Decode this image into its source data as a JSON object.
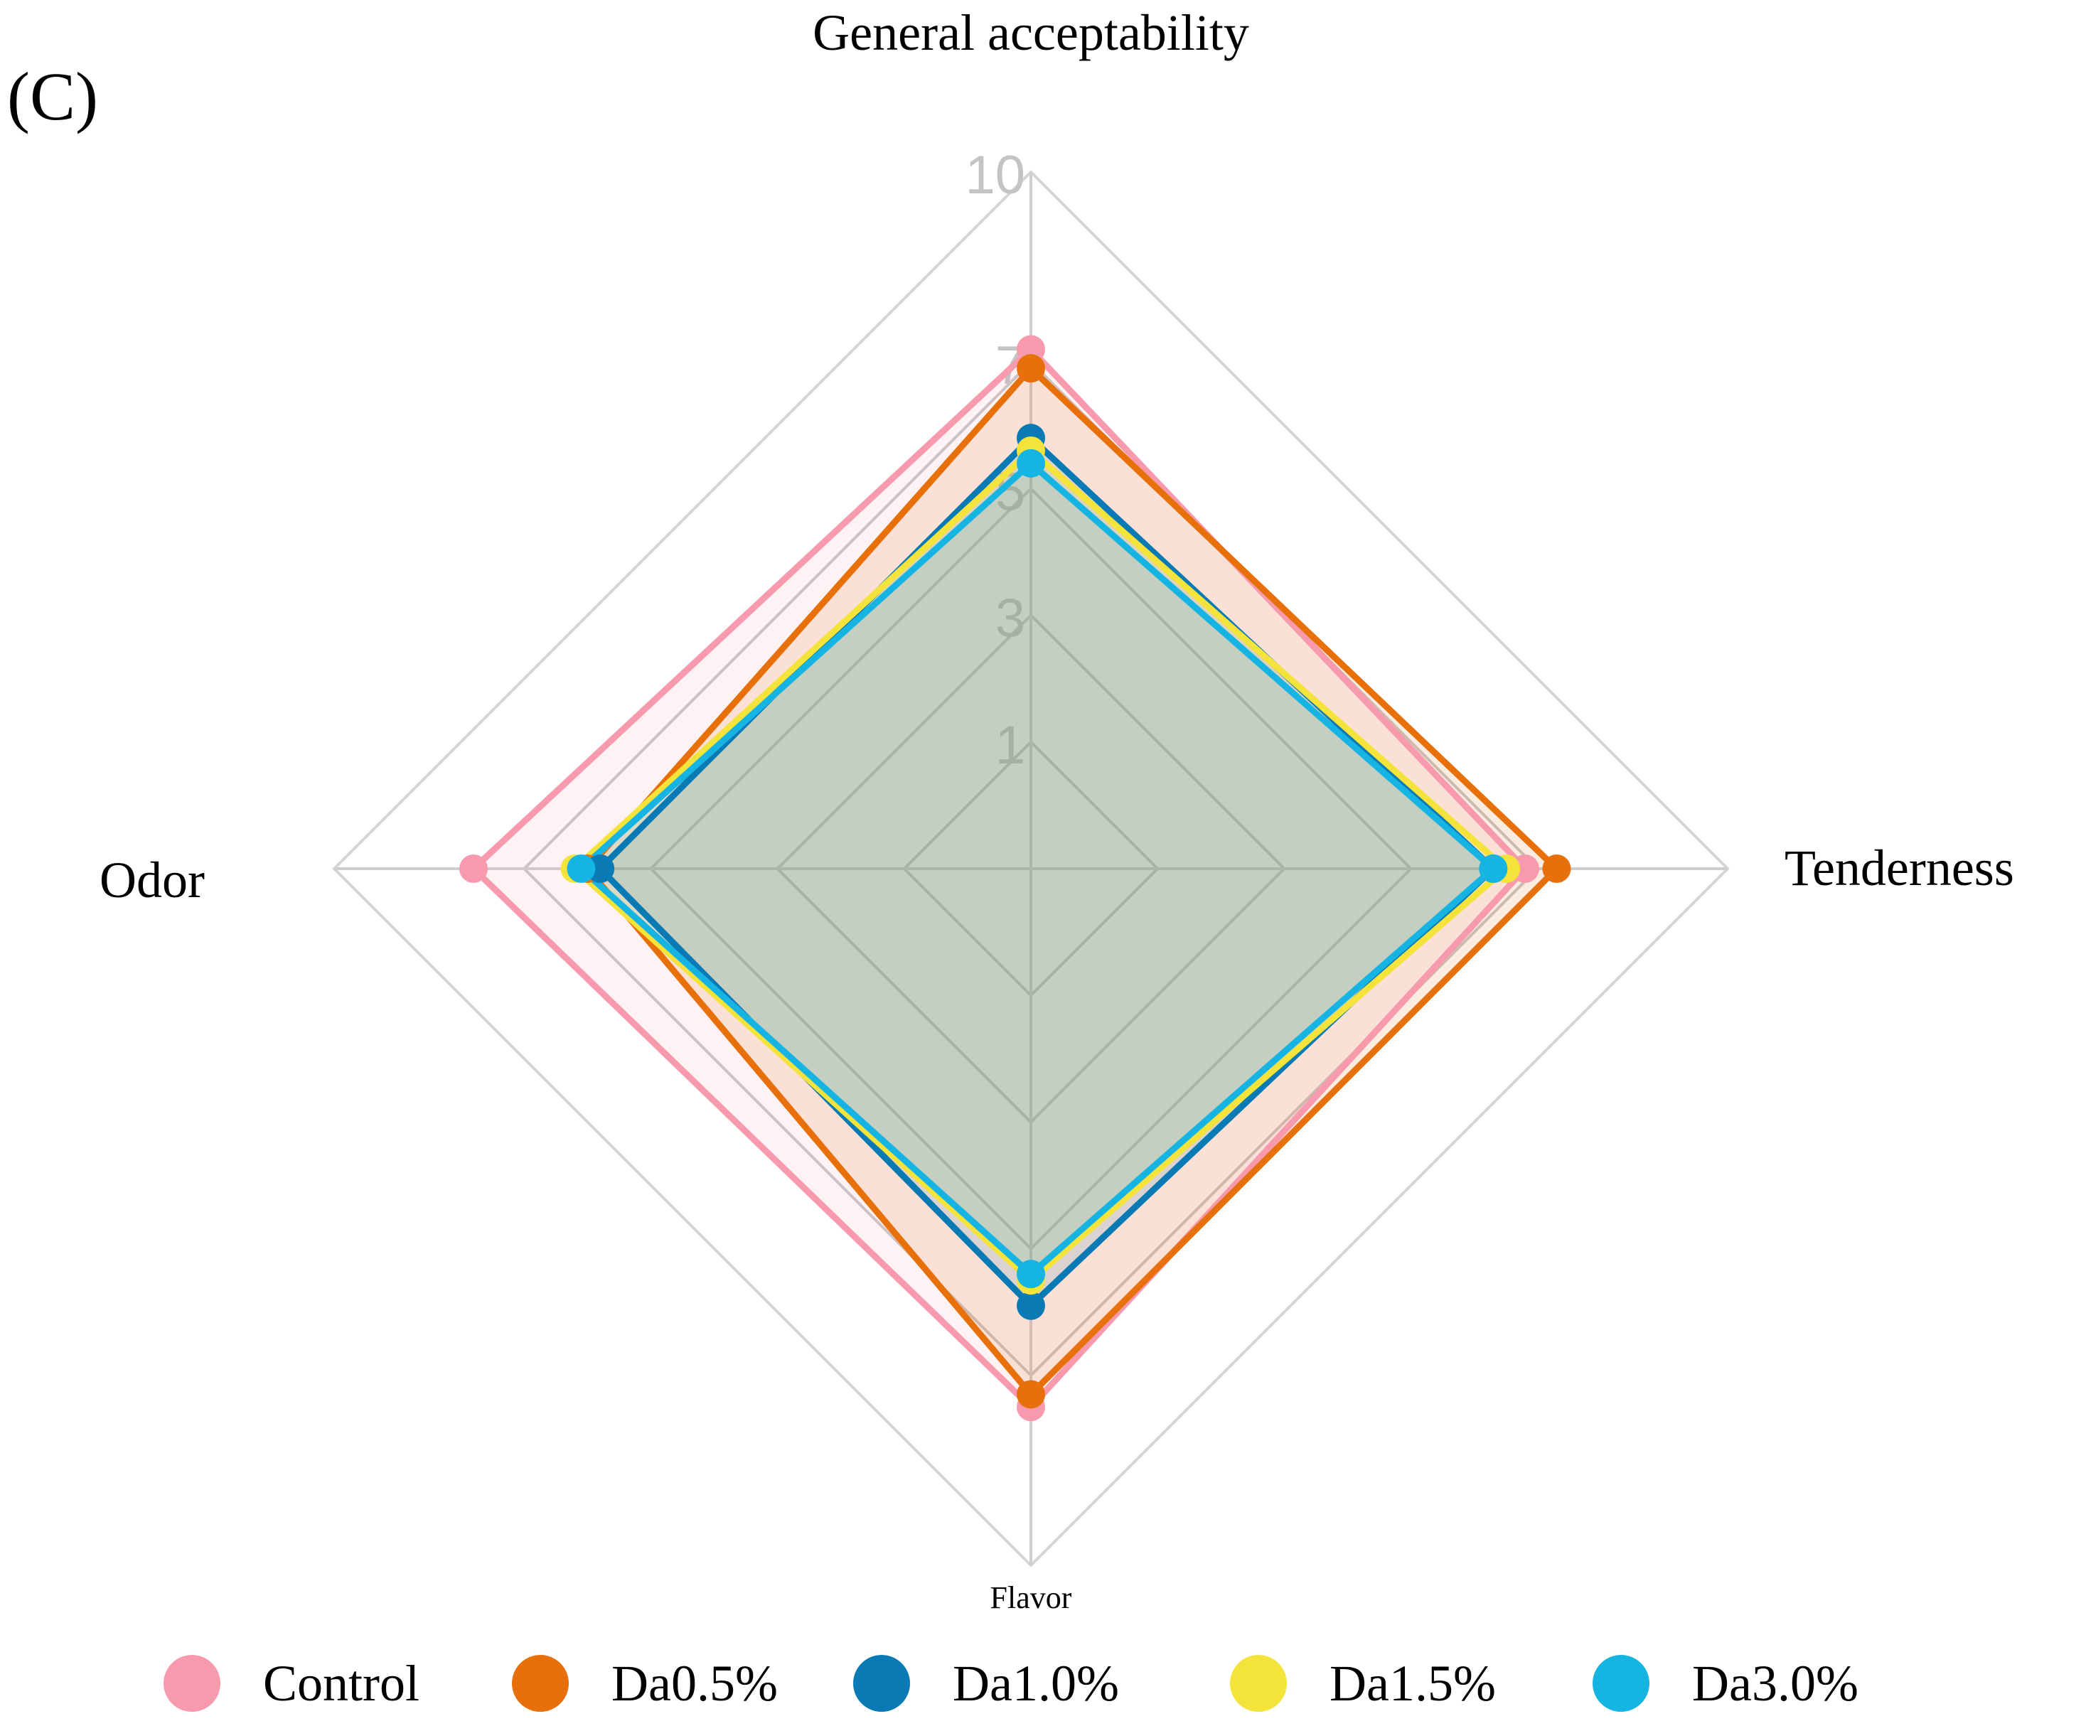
{
  "panel_label": "(C)",
  "chart_data": {
    "type": "radar",
    "title": "",
    "axes": [
      "General acceptability",
      "Tenderness",
      "Flavor",
      "Odor"
    ],
    "rlim": [
      -1,
      10
    ],
    "ticks": [
      "1",
      "3",
      "5",
      "7",
      "10"
    ],
    "series": [
      {
        "name": "Control",
        "color": "#f79aae",
        "values": [
          7.2,
          6.8,
          7.5,
          7.8
        ]
      },
      {
        "name": "Da0.5%",
        "color": "#e8700a",
        "values": [
          6.9,
          7.3,
          7.3,
          6.0
        ]
      },
      {
        "name": "Da1.0%",
        "color": "#0a7ab5",
        "values": [
          5.8,
          6.3,
          5.9,
          5.8
        ]
      },
      {
        "name": "Da1.5%",
        "color": "#f4e33a",
        "values": [
          5.6,
          6.5,
          5.5,
          6.2
        ]
      },
      {
        "name": "Da3.0%",
        "color": "#16b4e2",
        "values": [
          5.4,
          6.3,
          5.4,
          6.1
        ]
      }
    ],
    "legend_position": "bottom"
  }
}
